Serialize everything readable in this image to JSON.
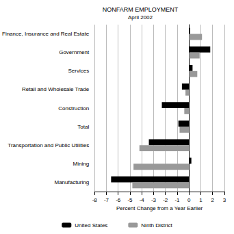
{
  "chart_data": {
    "type": "bar",
    "orientation": "horizontal",
    "title": "NONFARM EMPLOYMENT",
    "subtitle": "April 2002",
    "xlabel": "Percent Change from a Year Earlier",
    "categories": [
      "Finance, Insurance and Real Estate",
      "Government",
      "Services",
      "Retail and Wholesale Trade",
      "Construction",
      "Total",
      "Transportation and Public Utilities",
      "Mining",
      "Manufacturing"
    ],
    "series": [
      {
        "name": "United States",
        "color": "#000000",
        "values": [
          0.1,
          1.8,
          0.3,
          -0.6,
          -2.3,
          -0.9,
          -3.4,
          0.2,
          -6.6
        ]
      },
      {
        "name": "Ninth District",
        "color": "#999999",
        "values": [
          1.1,
          0.9,
          0.7,
          -0.3,
          -0.4,
          -0.8,
          -4.2,
          -4.7,
          -4.8
        ]
      }
    ],
    "xlim": [
      -8,
      3
    ],
    "xticks": [
      -8,
      -7,
      -6,
      -5,
      -4,
      -3,
      -2,
      -1,
      0,
      1,
      2,
      3
    ],
    "grid": true,
    "legend": "bottom"
  }
}
